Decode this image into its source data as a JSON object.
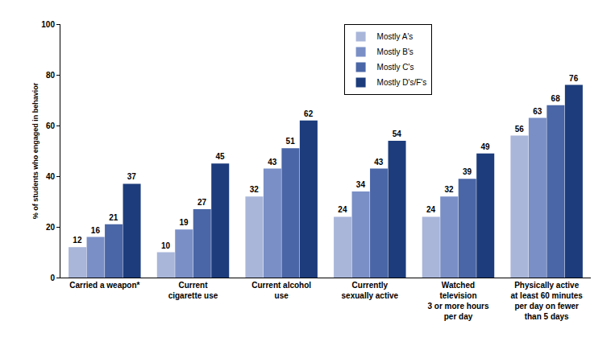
{
  "chart_data": {
    "type": "bar",
    "y_label": "% of students who engaged in behavior",
    "categories": [
      "Carried a weapon*",
      "Current\ncigarette use",
      "Current alcohol\nuse",
      "Currently\nsexually active",
      "Watched\ntelevision\n3 or more hours\nper day",
      "Physically active\nat least 60 minutes\nper day on fewer\nthan 5 days"
    ],
    "series": [
      {
        "name": "Mostly A's",
        "color": "#a9b6da",
        "values": [
          12,
          10,
          32,
          24,
          24,
          56
        ]
      },
      {
        "name": "Mostly B's",
        "color": "#7a8fc6",
        "values": [
          16,
          19,
          43,
          34,
          32,
          63
        ]
      },
      {
        "name": "Mostly C's",
        "color": "#4a66a6",
        "values": [
          21,
          27,
          51,
          43,
          39,
          68
        ]
      },
      {
        "name": "Mostly D's/F's",
        "color": "#1c3c7c",
        "values": [
          37,
          45,
          62,
          54,
          49,
          76
        ]
      }
    ],
    "ylim": [
      0,
      100
    ],
    "yticks": [
      0,
      20,
      40,
      60,
      80,
      100
    ],
    "grid": false,
    "legend": "upper right",
    "data_labels": true
  }
}
